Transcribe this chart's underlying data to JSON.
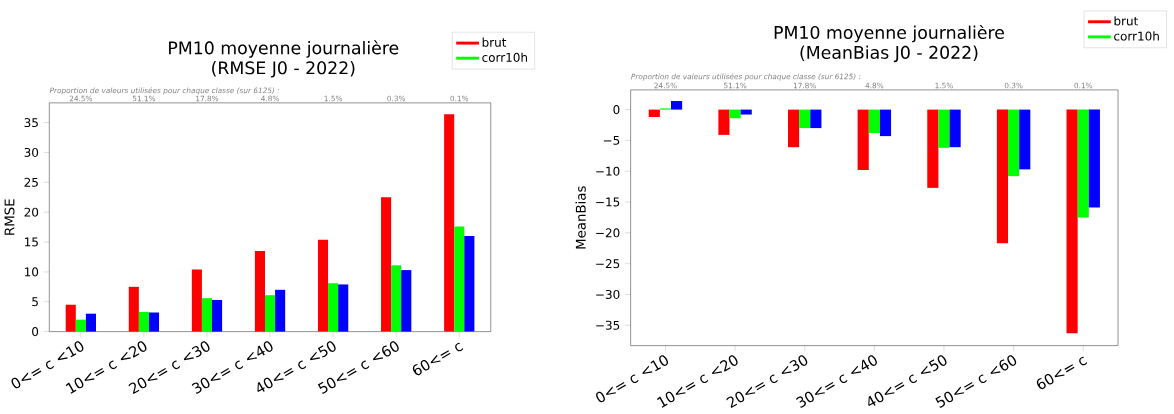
{
  "chart_data": [
    {
      "type": "bar",
      "title": "PM10 moyenne journalière",
      "subtitle": "(RMSE J0 - 2022)",
      "ylabel": "RMSE",
      "categories": [
        "0<= c <10",
        "10<= c <20",
        "20<= c <30",
        "30<= c <40",
        "40<= c <50",
        "50<= c <60",
        "60<= c"
      ],
      "series": [
        {
          "name": "brut",
          "color": "#ff0000",
          "values": [
            4.5,
            7.5,
            10.4,
            13.5,
            15.4,
            22.5,
            36.4
          ]
        },
        {
          "name": "corr10h",
          "color": "#00ff00",
          "values": [
            2.0,
            3.3,
            5.6,
            6.1,
            8.1,
            11.1,
            17.6
          ]
        },
        {
          "color": "#0000ff",
          "values": [
            3.0,
            3.2,
            5.3,
            7.0,
            7.9,
            10.3,
            16.0
          ]
        }
      ],
      "ylim": [
        0,
        38.3
      ],
      "yticks": [
        0,
        5,
        10,
        15,
        20,
        25,
        30,
        35
      ],
      "legend": "top right",
      "annotations": [
        "Proportion de valeurs utilisées pour chaque classe (sur 6125) :",
        "24.5%",
        "51.1%",
        "17.8%",
        "4.8%",
        "1.5%",
        "0.3%",
        "0.1%"
      ]
    },
    {
      "type": "bar",
      "title": "PM10 moyenne journalière",
      "subtitle": "(MeanBias J0 - 2022)",
      "ylabel": "MeanBias",
      "categories": [
        "0<= c <10",
        "10<= c <20",
        "20<= c <30",
        "30<= c <40",
        "40<= c <50",
        "50<= c <60",
        "60<= c"
      ],
      "series": [
        {
          "name": "brut",
          "color": "#ff0000",
          "values": [
            -1.2,
            -4.1,
            -6.1,
            -9.8,
            -12.7,
            -21.7,
            -36.3
          ]
        },
        {
          "name": "corr10h",
          "color": "#00ff00",
          "values": [
            0.2,
            -1.4,
            -3.0,
            -3.8,
            -6.2,
            -10.8,
            -17.5
          ]
        },
        {
          "color": "#0000ff",
          "values": [
            1.4,
            -0.8,
            -3.0,
            -4.3,
            -6.1,
            -9.7,
            -15.9
          ]
        }
      ],
      "ylim": [
        -38.3,
        3.2
      ],
      "yticks": [
        {
          "value": -35,
          "label": "−35"
        },
        {
          "value": -30,
          "label": "−30"
        },
        {
          "value": -25,
          "label": "−25"
        },
        {
          "value": -20,
          "label": "−20"
        },
        {
          "value": -15,
          "label": "−15"
        },
        {
          "value": -10,
          "label": "−10"
        },
        {
          "value": -5,
          "label": "−5"
        },
        0
      ],
      "legend": "top right",
      "annotations": [
        "Proportion de valeurs utilisées pour chaque classe (sur 6125) :",
        "24.5%",
        "51.1%",
        "17.8%",
        "4.8%",
        "1.5%",
        "0.3%",
        "0.1%"
      ]
    }
  ]
}
